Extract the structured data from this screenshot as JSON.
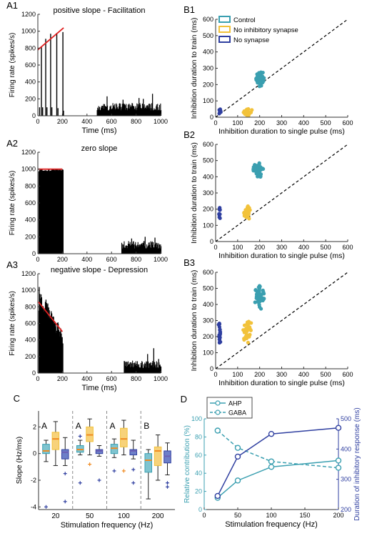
{
  "colors": {
    "teal": "#3a9fb0",
    "yellow": "#f2c23a",
    "navy": "#2f3fa0",
    "red": "#e02020",
    "black": "#000000",
    "purple": "#6b5fb5",
    "orange": "#f08a20",
    "box_teal": "#7fc4d0",
    "box_yellow": "#f7d27a",
    "box_navy": "#6d7fc8"
  },
  "panel_labels": {
    "A1": "A1",
    "A2": "A2",
    "A3": "A3",
    "B1": "B1",
    "B2": "B2",
    "B3": "B3",
    "C": "C",
    "D": "D"
  },
  "chart_data": [
    {
      "id": "A1",
      "type": "bar",
      "title": "positive slope - Facilitation",
      "xlabel": "Time (ms)",
      "ylabel": "Firing rate (spikes/s)",
      "xlim": [
        0,
        1000
      ],
      "ylim": [
        0,
        1200
      ],
      "xticks": [
        0,
        200,
        400,
        600,
        800,
        1000
      ],
      "yticks": [
        0,
        200,
        400,
        600,
        800,
        1000,
        1200
      ],
      "spikes": [
        [
          10,
          100
        ],
        [
          25,
          820
        ],
        [
          35,
          100
        ],
        [
          60,
          910
        ],
        [
          70,
          100
        ],
        [
          100,
          970
        ],
        [
          110,
          100
        ],
        [
          150,
          980
        ],
        [
          160,
          90
        ],
        [
          200,
          990
        ],
        [
          205,
          60
        ]
      ],
      "tail": {
        "range": [
          480,
          1000
        ],
        "baseline": 100,
        "peaks": [
          [
            560,
            230
          ],
          [
            690,
            190
          ],
          [
            820,
            210
          ],
          [
            855,
            200
          ],
          [
            930,
            260
          ]
        ]
      },
      "fit_line": [
        [
          0,
          780
        ],
        [
          210,
          1040
        ]
      ]
    },
    {
      "id": "A2",
      "type": "bar",
      "title": "zero slope",
      "xlabel": "",
      "ylabel": "Firing rate (spikes/s)",
      "xlim": [
        0,
        1000
      ],
      "ylim": [
        0,
        1200
      ],
      "xticks": [
        0,
        200,
        400,
        600,
        800,
        1000
      ],
      "yticks": [
        0,
        200,
        400,
        600,
        800,
        1000,
        1200
      ],
      "dense": {
        "range": [
          5,
          200
        ],
        "top": 1000
      },
      "tail": {
        "range": [
          680,
          1000
        ],
        "baseline": 100,
        "peaks": [
          [
            760,
            180
          ],
          [
            870,
            200
          ],
          [
            950,
            190
          ]
        ]
      },
      "fit_line": [
        [
          5,
          1000
        ],
        [
          200,
          1000
        ]
      ]
    },
    {
      "id": "A3",
      "type": "bar",
      "title": "negative slope - Depression",
      "xlabel": "Time (ms)",
      "ylabel": "Firing rate (spikes/s)",
      "xlim": [
        0,
        1000
      ],
      "ylim": [
        0,
        1200
      ],
      "xticks": [
        0,
        200,
        400,
        600,
        800,
        1000
      ],
      "yticks": [
        0,
        200,
        400,
        600,
        800,
        1000,
        1200
      ],
      "decay": {
        "range": [
          5,
          200
        ],
        "start": 1000,
        "end": 480
      },
      "tail": {
        "range": [
          700,
          1000
        ],
        "baseline": 100,
        "peaks": [
          [
            890,
            230
          ],
          [
            940,
            300
          ],
          [
            980,
            170
          ]
        ]
      },
      "fit_line": [
        [
          5,
          860
        ],
        [
          200,
          500
        ]
      ]
    },
    {
      "id": "B1",
      "type": "scatter",
      "xlabel": "Inhibition duration to single pulse (ms)",
      "ylabel": "Inhibition duration to train (ms)",
      "xlim": [
        0,
        600
      ],
      "ylim": [
        0,
        600
      ],
      "xticks": [
        0,
        100,
        200,
        300,
        400,
        500,
        600
      ],
      "yticks": [
        0,
        100,
        200,
        300,
        400,
        500,
        600
      ],
      "legend": {
        "position": "top-left",
        "entries": [
          "Control",
          "No inhibitory synapse",
          "No synapse"
        ]
      },
      "series": [
        {
          "name": "Control",
          "cx": 200,
          "cy": 240,
          "sx": 14,
          "sy": 32,
          "n": 45
        },
        {
          "name": "No inhibitory synapse",
          "cx": 145,
          "cy": 30,
          "sx": 12,
          "sy": 14,
          "n": 30
        },
        {
          "name": "No synapse",
          "cx": 20,
          "cy": 38,
          "sx": 3,
          "sy": 8,
          "n": 14
        }
      ]
    },
    {
      "id": "B2",
      "type": "scatter",
      "xlabel": "Inhibition duration to single pulse (ms)",
      "ylabel": "Inhibition duration to train (ms)",
      "xlim": [
        0,
        600
      ],
      "ylim": [
        0,
        600
      ],
      "xticks": [
        0,
        100,
        200,
        300,
        400,
        500,
        600
      ],
      "yticks": [
        0,
        100,
        200,
        300,
        400,
        500,
        600
      ],
      "series": [
        {
          "name": "Control",
          "cx": 195,
          "cy": 440,
          "sx": 14,
          "sy": 28,
          "n": 45
        },
        {
          "name": "No inhibitory synapse",
          "cx": 145,
          "cy": 185,
          "sx": 12,
          "sy": 25,
          "n": 30
        },
        {
          "name": "No synapse",
          "cx": 18,
          "cy": 175,
          "sx": 3,
          "sy": 40,
          "n": 12
        }
      ]
    },
    {
      "id": "B3",
      "type": "scatter",
      "xlabel": "Inhibition duration to single pulse (ms)",
      "ylabel": "Inhibition duration to train (ms)",
      "xlim": [
        0,
        600
      ],
      "ylim": [
        0,
        600
      ],
      "xticks": [
        0,
        100,
        200,
        300,
        400,
        500,
        600
      ],
      "yticks": [
        0,
        100,
        200,
        300,
        400,
        500,
        600
      ],
      "series": [
        {
          "name": "Control",
          "cx": 200,
          "cy": 450,
          "sx": 14,
          "sy": 45,
          "n": 45
        },
        {
          "name": "No inhibitory synapse",
          "cx": 145,
          "cy": 240,
          "sx": 12,
          "sy": 45,
          "n": 35
        },
        {
          "name": "No synapse",
          "cx": 18,
          "cy": 220,
          "sx": 3,
          "sy": 50,
          "n": 22
        }
      ]
    },
    {
      "id": "C",
      "type": "box",
      "xlabel": "Stimulation frequency (Hz)",
      "ylabel": "Slope (Hz/ms)",
      "ylim": [
        -4.2,
        3.2
      ],
      "yticks": [
        -4,
        -2,
        0,
        2
      ],
      "categories": [
        "20",
        "50",
        "100",
        "200"
      ],
      "group_letters": [
        "A",
        "A",
        "A",
        "B"
      ],
      "boxes": [
        {
          "group": 0,
          "color": "teal",
          "q1": 0.0,
          "med": 0.2,
          "q3": 0.7,
          "wlo": -0.6,
          "whi": 1.0,
          "out": [
            -4.0
          ]
        },
        {
          "group": 0,
          "color": "yellow",
          "q1": 0.3,
          "med": 1.1,
          "q3": 1.6,
          "wlo": -0.9,
          "whi": 2.4,
          "out": []
        },
        {
          "group": 0,
          "color": "navy",
          "q1": -0.4,
          "med": 0.1,
          "q3": 0.3,
          "wlo": -0.9,
          "whi": 1.2,
          "out": [
            -1.5,
            -3.6
          ]
        },
        {
          "group": 1,
          "color": "teal",
          "q1": 0.1,
          "med": 0.3,
          "q3": 0.6,
          "wlo": -0.1,
          "whi": 1.0,
          "out": [
            -2.2,
            1.3
          ]
        },
        {
          "group": 1,
          "color": "yellow",
          "q1": 0.9,
          "med": 1.4,
          "q3": 2.0,
          "wlo": -0.1,
          "whi": 2.6,
          "out": [
            -0.8
          ]
        },
        {
          "group": 1,
          "color": "navy",
          "q1": 0.0,
          "med": 0.2,
          "q3": 0.3,
          "wlo": -0.2,
          "whi": 0.6,
          "out": [
            -2.0
          ]
        },
        {
          "group": 2,
          "color": "teal",
          "q1": 0.0,
          "med": 0.4,
          "q3": 0.7,
          "wlo": -0.3,
          "whi": 1.1,
          "out": [
            -1.3
          ]
        },
        {
          "group": 2,
          "color": "yellow",
          "q1": 0.5,
          "med": 1.1,
          "q3": 1.9,
          "wlo": -0.1,
          "whi": 2.5,
          "out": [
            -1.3
          ]
        },
        {
          "group": 2,
          "color": "navy",
          "q1": -0.1,
          "med": 0.2,
          "q3": 0.3,
          "wlo": -0.4,
          "whi": 1.0,
          "out": [
            -1.2,
            -2.2
          ]
        },
        {
          "group": 3,
          "color": "teal",
          "q1": -1.4,
          "med": -0.5,
          "q3": 0.0,
          "wlo": -3.4,
          "whi": 0.3,
          "out": []
        },
        {
          "group": 3,
          "color": "yellow",
          "q1": -0.9,
          "med": 0.2,
          "q3": 0.5,
          "wlo": -2.0,
          "whi": 1.4,
          "out": []
        },
        {
          "group": 3,
          "color": "navy",
          "q1": -0.7,
          "med": -0.2,
          "q3": 0.2,
          "wlo": -1.6,
          "whi": 0.8,
          "out": [
            -2.2,
            -2.5
          ]
        }
      ]
    },
    {
      "id": "D",
      "type": "line",
      "xlabel": "Stimulation frequency (Hz)",
      "ylabel": "Relative contribution (%)",
      "ylabel_right": "Duration of inhibitory response (ms)",
      "xlim": [
        0,
        200
      ],
      "ylim": [
        0,
        100
      ],
      "ylim_right": [
        200,
        500
      ],
      "xticks": [
        0,
        50,
        100,
        150,
        200
      ],
      "yticks": [
        0,
        20,
        40,
        60,
        80,
        100
      ],
      "yticks_right": [
        200,
        300,
        400,
        500
      ],
      "legend": {
        "position": "top-left",
        "entries": [
          "AHP",
          "GABA"
        ]
      },
      "series": [
        {
          "name": "AHP",
          "axis": "left",
          "style": "solid",
          "color": "teal",
          "x": [
            20,
            50,
            100,
            200
          ],
          "y": [
            13,
            32,
            47,
            54
          ]
        },
        {
          "name": "GABA",
          "axis": "left",
          "style": "dashed",
          "color": "teal",
          "x": [
            20,
            50,
            100,
            200
          ],
          "y": [
            87,
            68,
            53,
            46
          ]
        },
        {
          "axis": "right",
          "style": "solid",
          "color": "navy",
          "x": [
            20,
            50,
            100,
            200
          ],
          "y": [
            245,
            375,
            450,
            470
          ]
        }
      ]
    }
  ]
}
